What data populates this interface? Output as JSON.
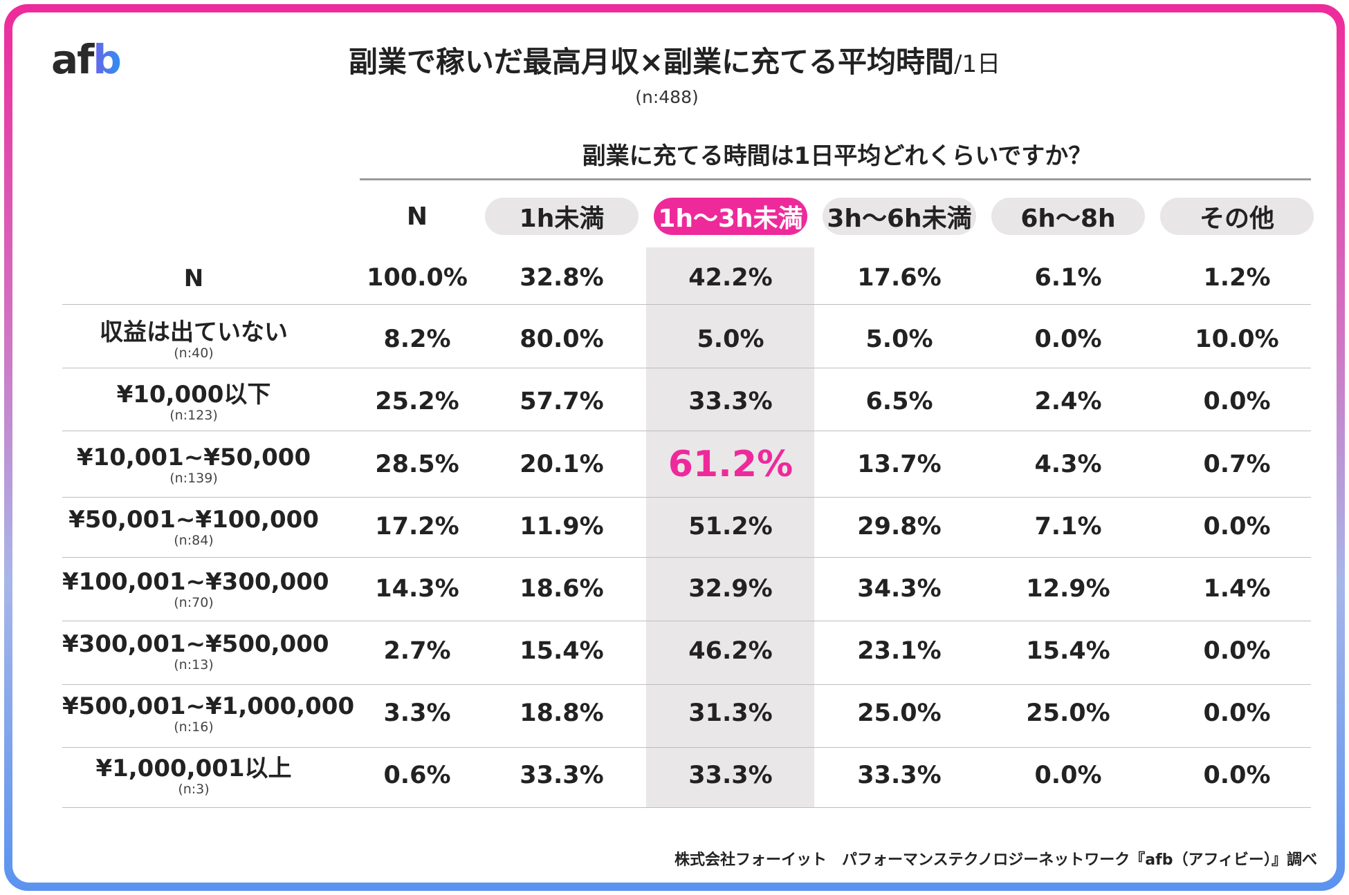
{
  "header": {
    "logo_a": "a",
    "logo_f": "f",
    "logo_b": "b",
    "title": "副業で稼いだ最高月収×副業に充てる平均時間",
    "title_suffix": "/1日",
    "sample": "(n:488)"
  },
  "chart_data": {
    "type": "table",
    "question": "副業に充てる時間は1日平均どれくらいですか？",
    "columns": [
      "N",
      "1h未満",
      "1h～3h未満",
      "3h～6h未満",
      "6h～8h",
      "その他"
    ],
    "highlight_column": "1h～3h未満",
    "highlight_cell": {
      "row": "¥10,001~¥50,000",
      "column": "1h～3h未満",
      "value": "61.2%"
    },
    "highlight_colors": {
      "accent": "#ee2a9b",
      "column_bg": "#e9e7e8",
      "pill_bg": "#e8e6e7"
    },
    "rows": [
      {
        "label": "N",
        "n": "",
        "values": [
          "100.0%",
          "32.8%",
          "42.2%",
          "17.6%",
          "6.1%",
          "1.2%"
        ]
      },
      {
        "label": "収益は出ていない",
        "n": "(n:40)",
        "values": [
          "8.2%",
          "80.0%",
          "5.0%",
          "5.0%",
          "0.0%",
          "10.0%"
        ]
      },
      {
        "label": "¥10,000以下",
        "n": "(n:123)",
        "values": [
          "25.2%",
          "57.7%",
          "33.3%",
          "6.5%",
          "2.4%",
          "0.0%"
        ]
      },
      {
        "label": "¥10,001~¥50,000",
        "n": "(n:139)",
        "values": [
          "28.5%",
          "20.1%",
          "61.2%",
          "13.7%",
          "4.3%",
          "0.7%"
        ]
      },
      {
        "label": "¥50,001~¥100,000",
        "n": "(n:84)",
        "values": [
          "17.2%",
          "11.9%",
          "51.2%",
          "29.8%",
          "7.1%",
          "0.0%"
        ]
      },
      {
        "label": "¥100,001~¥300,000",
        "n": "(n:70)",
        "values": [
          "14.3%",
          "18.6%",
          "32.9%",
          "34.3%",
          "12.9%",
          "1.4%"
        ]
      },
      {
        "label": "¥300,001~¥500,000",
        "n": "(n:13)",
        "values": [
          "2.7%",
          "15.4%",
          "46.2%",
          "23.1%",
          "15.4%",
          "0.0%"
        ]
      },
      {
        "label": "¥500,001~¥1,000,000",
        "n": "(n:16)",
        "values": [
          "3.3%",
          "18.8%",
          "31.3%",
          "25.0%",
          "25.0%",
          "0.0%"
        ]
      },
      {
        "label": "¥1,000,001以上",
        "n": "(n:3)",
        "values": [
          "0.6%",
          "33.3%",
          "33.3%",
          "33.3%",
          "0.0%",
          "0.0%"
        ]
      }
    ]
  },
  "footer": {
    "source": "株式会社フォーイット　パフォーマンステクノロジーネットワーク『afb（アフィビー）』調べ"
  }
}
